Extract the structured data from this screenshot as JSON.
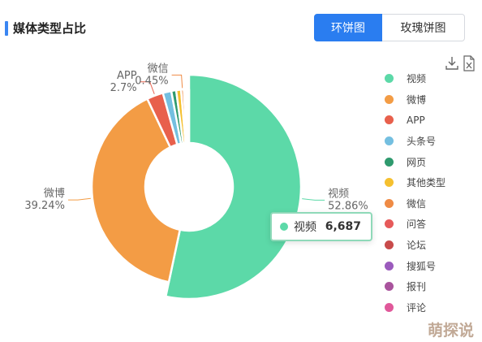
{
  "header": {
    "title": "媒体类型占比"
  },
  "toggle": {
    "donut_label": "环饼图",
    "rose_label": "玫瑰饼图"
  },
  "toolbar": {
    "download_icon": "download-icon",
    "excel_icon": "excel-export-icon"
  },
  "tooltip": {
    "name": "视频",
    "value": "6,687",
    "color": "#5cd9a8"
  },
  "watermark": "萌探说",
  "chart_data": {
    "type": "pie",
    "variant": "donut",
    "series": [
      {
        "name": "视频",
        "value": 52.86,
        "label_lines": [
          "视频",
          "52.86%"
        ],
        "color": "#5cd9a8"
      },
      {
        "name": "微博",
        "value": 39.24,
        "label_lines": [
          "微博",
          "39.24%"
        ],
        "color": "#f39c45"
      },
      {
        "name": "APP",
        "value": 2.7,
        "label_lines": [
          "APP",
          "2.7%"
        ],
        "color": "#e8604c"
      },
      {
        "name": "头条号",
        "value": 1.4,
        "color": "#74bfe0"
      },
      {
        "name": "网页",
        "value": 0.8,
        "color": "#2f9a6e"
      },
      {
        "name": "其他类型",
        "value": 0.8,
        "color": "#f5c02f"
      },
      {
        "name": "微信",
        "value": 0.45,
        "label_lines": [
          "微信",
          "0.45%"
        ],
        "color": "#ef8b45"
      },
      {
        "name": "问答",
        "value": 0.3,
        "color": "#e65a5a"
      },
      {
        "name": "论坛",
        "value": 0.2,
        "color": "#c84b4b"
      },
      {
        "name": "搜狐号",
        "value": 0.15,
        "color": "#9b5bbd"
      },
      {
        "name": "报刊",
        "value": 0.1,
        "color": "#a9549d"
      },
      {
        "name": "评论",
        "value": 0.1,
        "color": "#e0589a"
      }
    ],
    "legend_position": "right"
  }
}
